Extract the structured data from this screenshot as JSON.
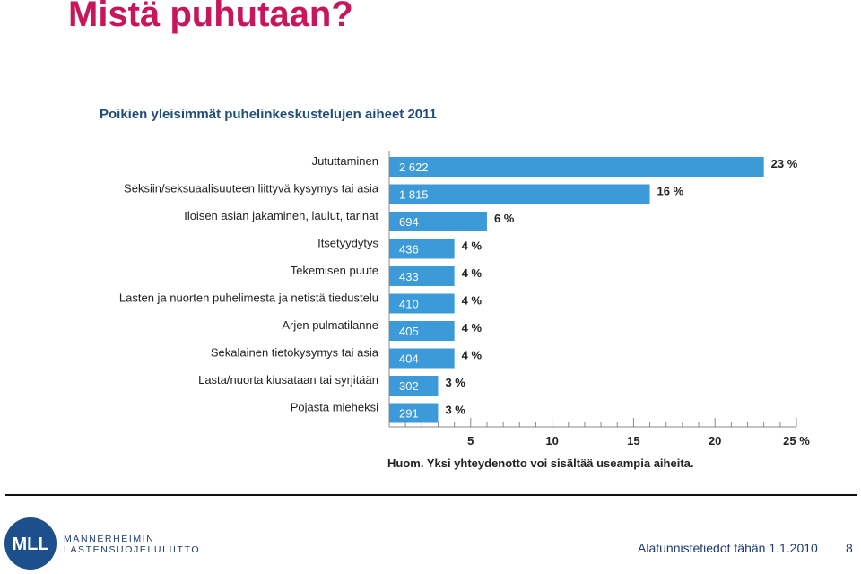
{
  "slide": {
    "title": "Mistä puhutaan?",
    "footer_text": "Alatunnistetiedot tähän 1.1.2010",
    "page_number": "8"
  },
  "logo": {
    "monogram": "MLL",
    "org_line1": "MANNERHEIMIN",
    "org_line2": "LASTENSUOJELULIITTO",
    "color": "#1d4f8c"
  },
  "chart_data": {
    "type": "bar",
    "orientation": "horizontal",
    "title": "Poikien yleisimmät puhelinkeskustelujen aiheet 2011",
    "categories": [
      "Jututtaminen",
      "Seksiin/seksuaalisuuteen liittyvä kysymys tai asia",
      "Iloisen asian jakaminen, laulut, tarinat",
      "Itsetyydytys",
      "Tekemisen puute",
      "Lasten ja nuorten puhelimesta ja netistä tiedustelu",
      "Arjen pulmatilanne",
      "Sekalainen tietokysymys tai asia",
      "Lasta/nuorta kiusataan tai syrjitään",
      "Pojasta mieheksi"
    ],
    "counts": [
      "2 622",
      "1 815",
      "694",
      "436",
      "433",
      "410",
      "405",
      "404",
      "302",
      "291"
    ],
    "values": [
      23,
      16,
      6,
      4,
      4,
      4,
      4,
      4,
      3,
      3
    ],
    "value_labels": [
      "23 %",
      "16 %",
      "6 %",
      "4 %",
      "4 %",
      "4 %",
      "4 %",
      "4 %",
      "3 %",
      "3 %"
    ],
    "xlim": [
      0,
      25
    ],
    "x_ticks": [
      5,
      10,
      15,
      20,
      25
    ],
    "x_tick_labels": [
      "5",
      "10",
      "15",
      "20",
      "25 %"
    ],
    "note": "Huom. Yksi yhteydenotto voi sisältää useampia aiheita.",
    "bar_color": "#3d9ad9",
    "grid": false
  }
}
